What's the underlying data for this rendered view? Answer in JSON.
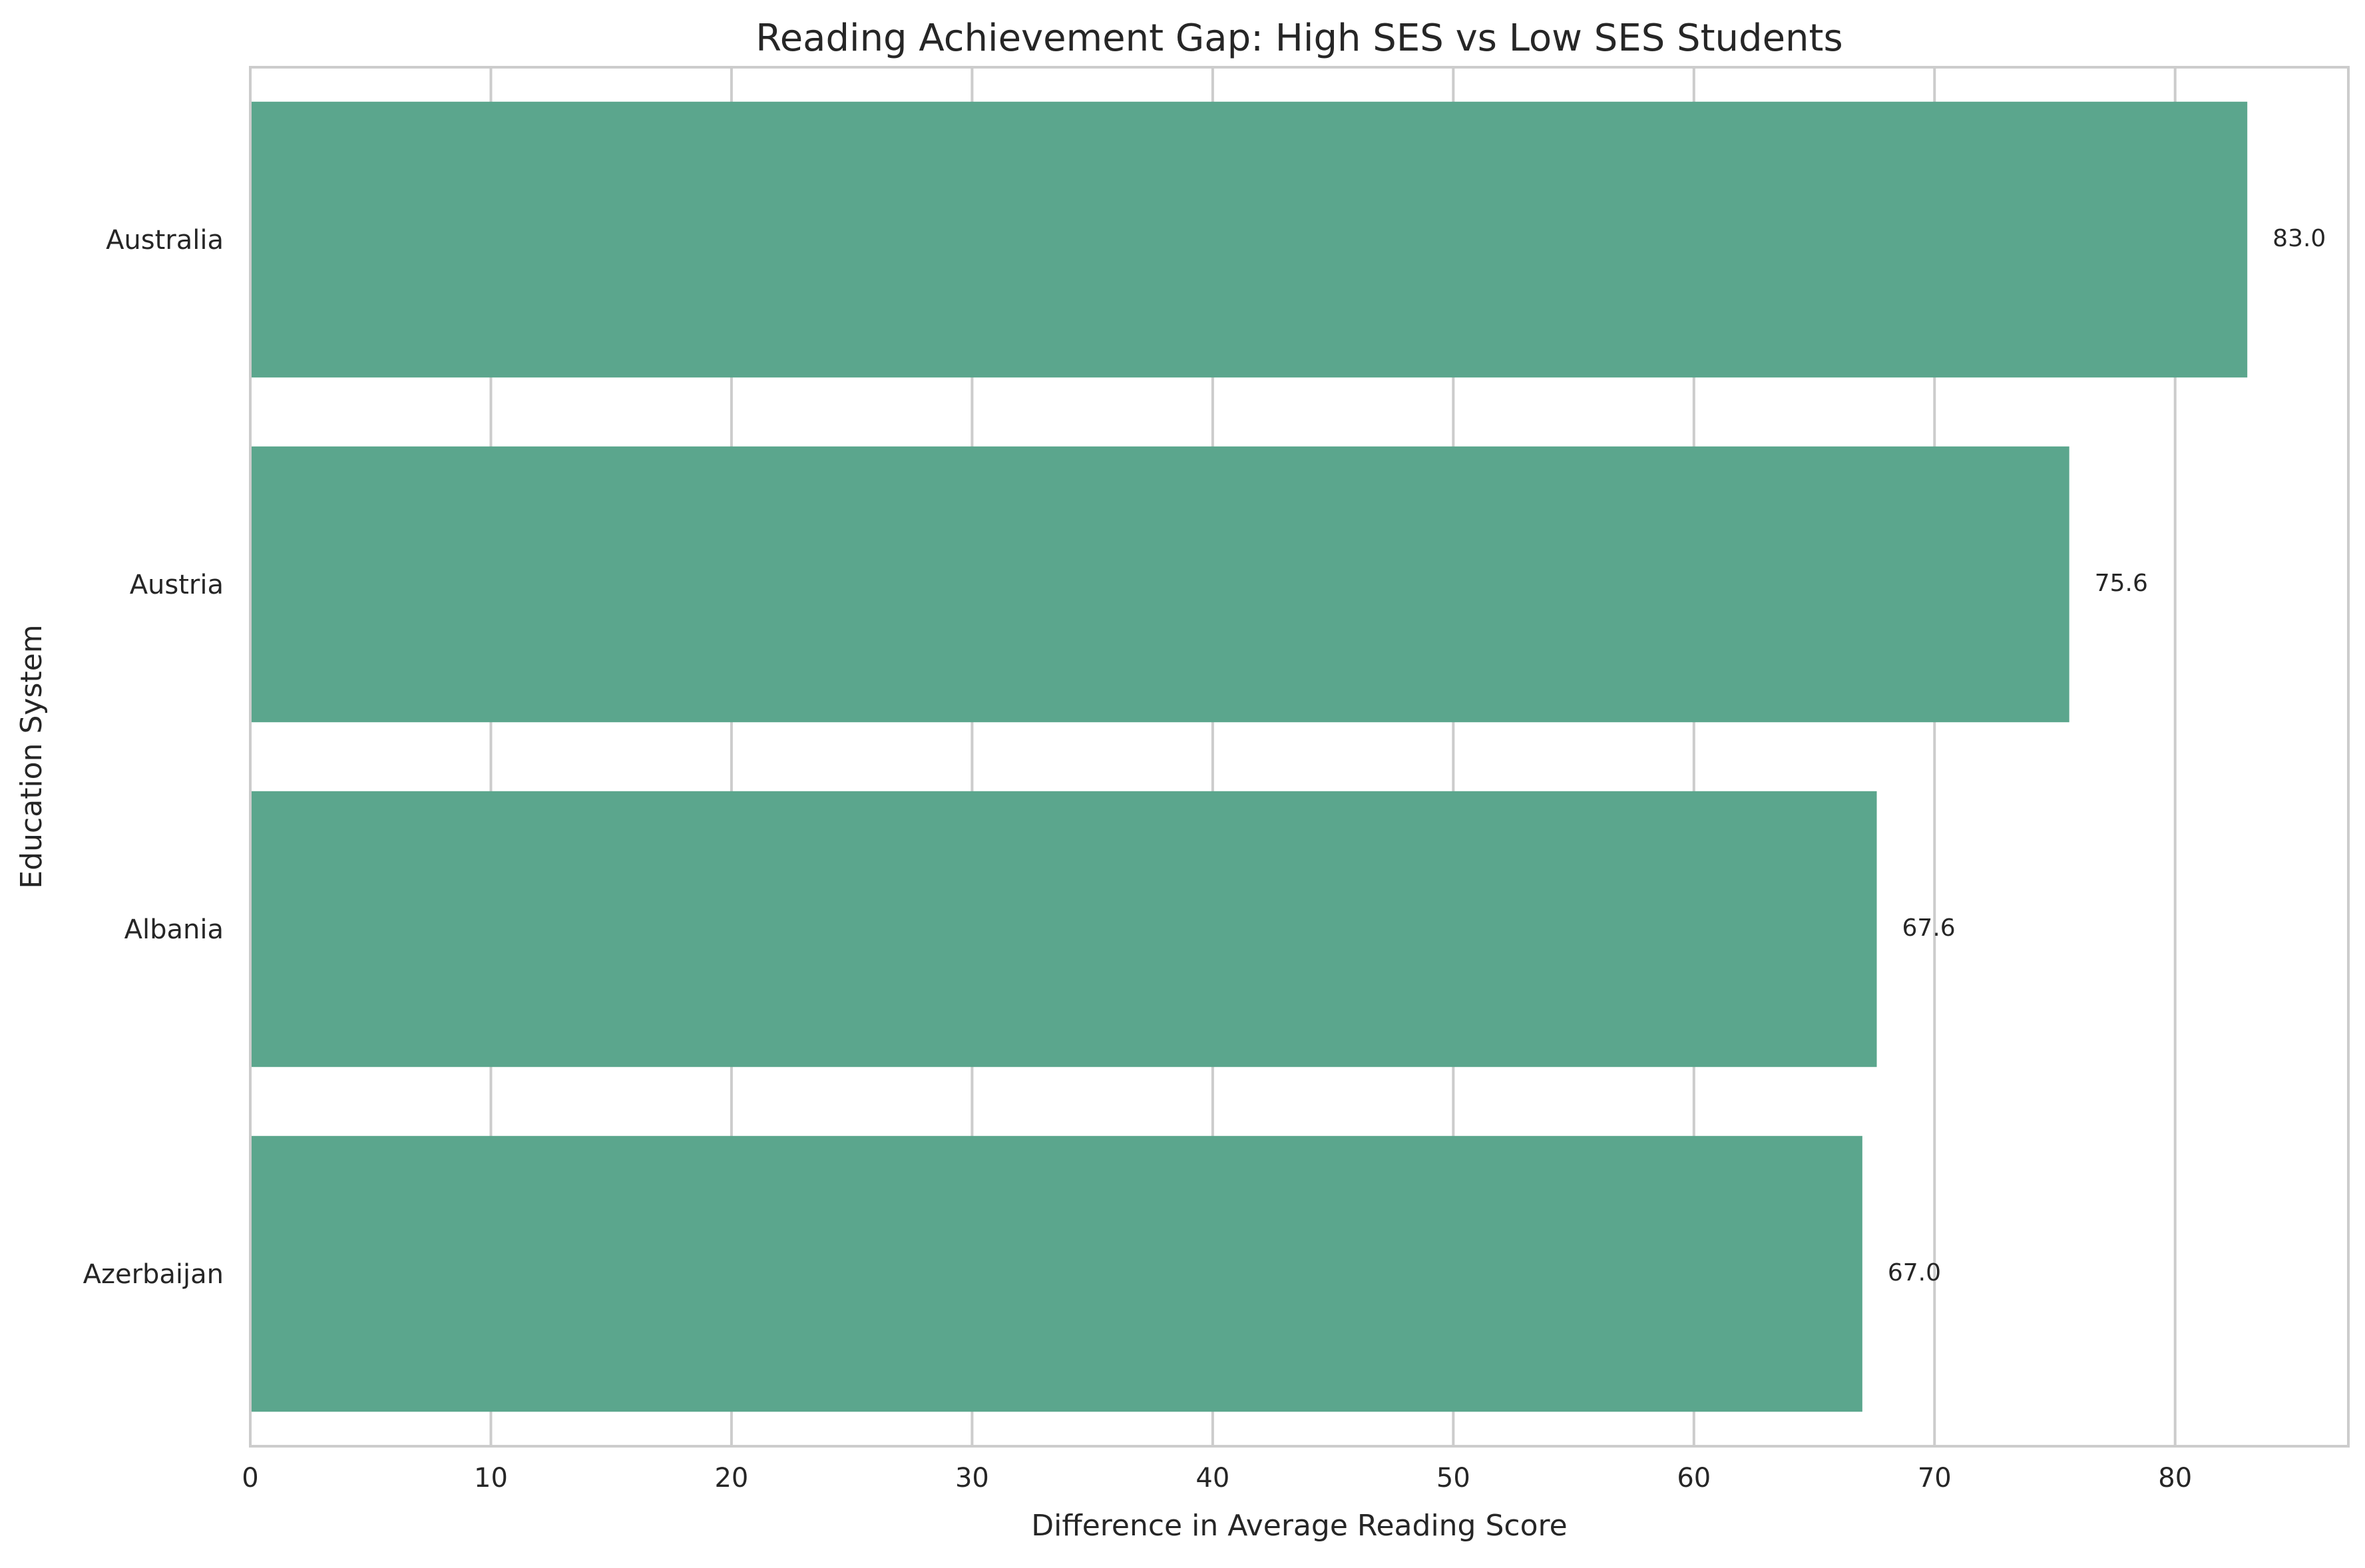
{
  "chart_data": {
    "type": "bar",
    "orientation": "horizontal",
    "title": "Reading Achievement Gap: High SES vs Low SES Students",
    "xlabel": "Difference in Average Reading Score",
    "ylabel": "Education System",
    "categories": [
      "Australia",
      "Austria",
      "Albania",
      "Azerbaijan"
    ],
    "values": [
      83.0,
      75.6,
      67.6,
      67.0
    ],
    "value_labels": [
      "83.0",
      "75.6",
      "67.6",
      "67.0"
    ],
    "xlim": [
      0,
      87.2
    ],
    "xticks": [
      0,
      10,
      20,
      30,
      40,
      50,
      60,
      70,
      80
    ],
    "grid": true,
    "bar_color": "#5BA68D",
    "grid_color": "#cccccc",
    "frame_color": "#cccccc"
  }
}
